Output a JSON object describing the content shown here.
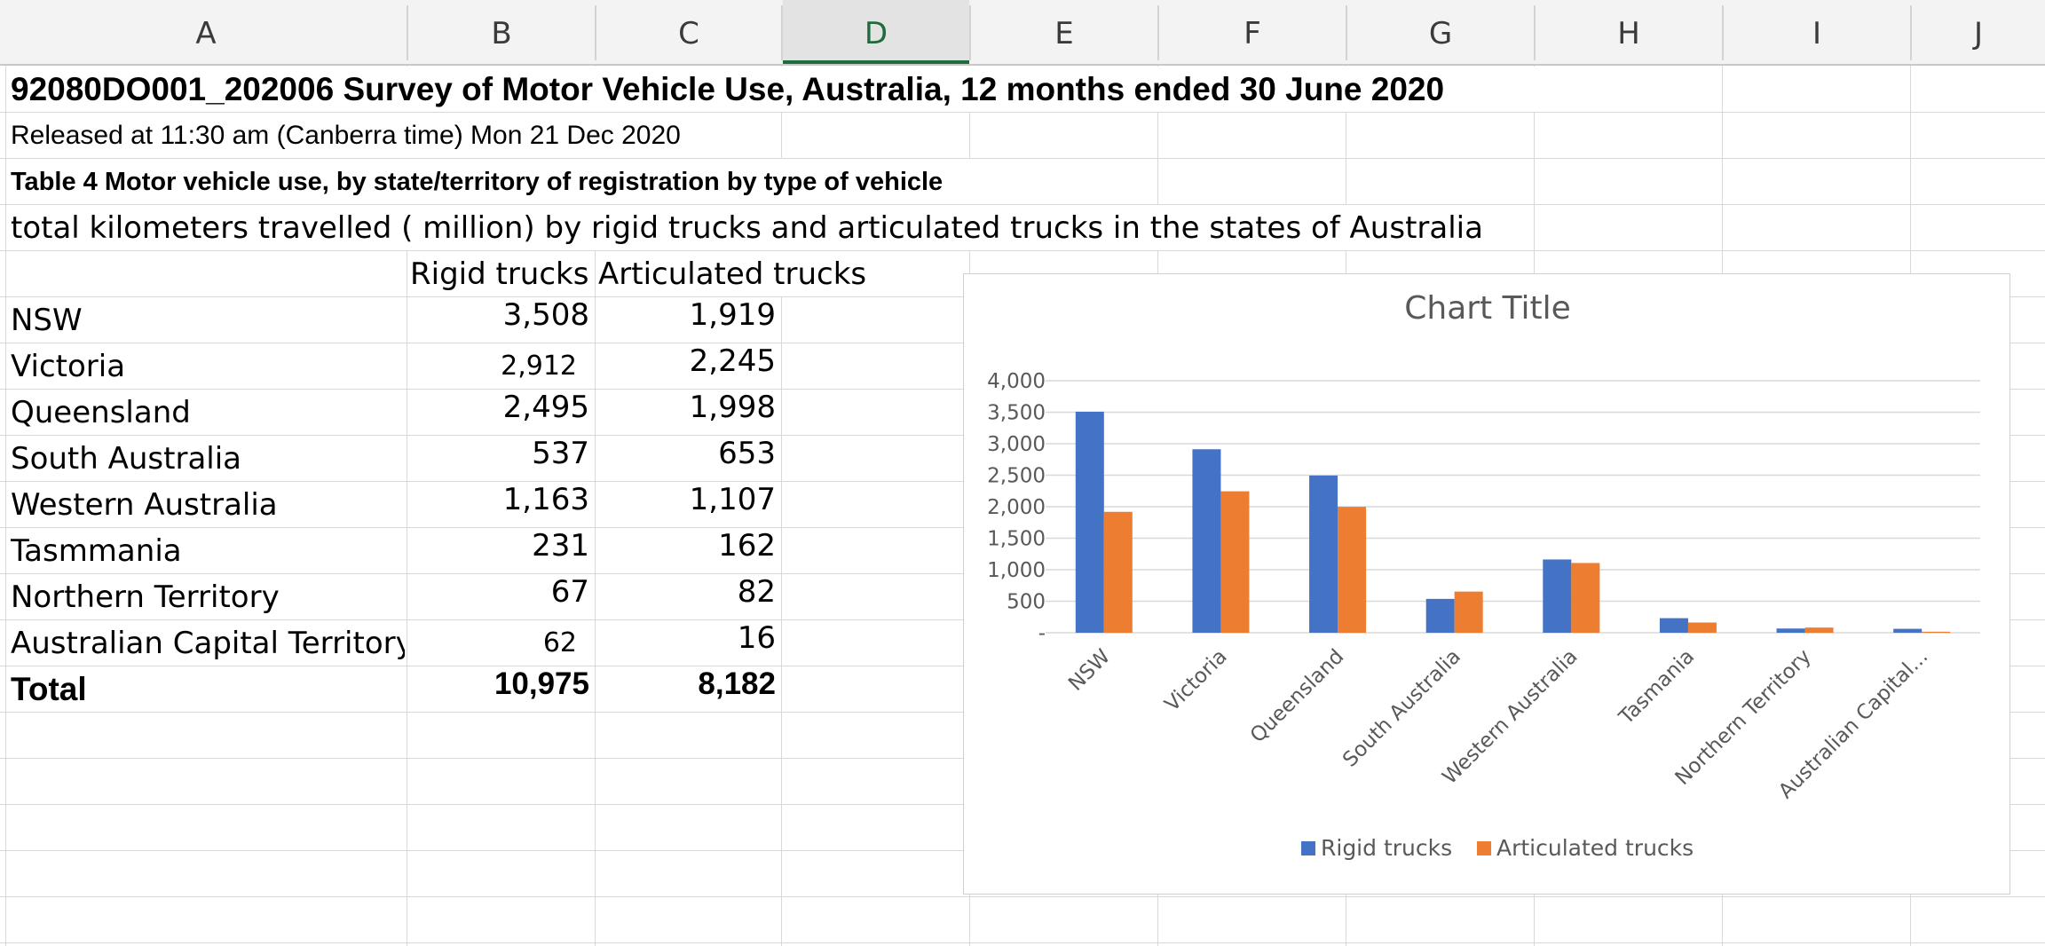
{
  "columns": [
    "A",
    "B",
    "C",
    "D",
    "E",
    "F",
    "G",
    "H",
    "I",
    "J"
  ],
  "active_column": "D",
  "sheet": {
    "title": "92080DO001_202006 Survey of Motor Vehicle Use, Australia, 12 months ended 30 June 2020",
    "released": "Released at 11:30 am (Canberra time) Mon 21 Dec 2020",
    "table_title": "Table 4 Motor vehicle use, by state/territory of registration by type of vehicle",
    "description": "total kilometers travelled ( million) by rigid trucks and articulated trucks in the states of Australia",
    "header_b": "Rigid trucks",
    "header_c": "Articulated trucks",
    "rows": [
      {
        "state": "NSW",
        "rigid": "3,508",
        "artic": "1,919"
      },
      {
        "state": "Victoria",
        "rigid": "2,912",
        "artic": "2,245"
      },
      {
        "state": "Queensland",
        "rigid": "2,495",
        "artic": "1,998"
      },
      {
        "state": "South Australia",
        "rigid": "537",
        "artic": "653"
      },
      {
        "state": "Western Australia",
        "rigid": "1,163",
        "artic": "1,107"
      },
      {
        "state": "Tasmmania",
        "rigid": "231",
        "artic": "162"
      },
      {
        "state": "Northern Territory",
        "rigid": "67",
        "artic": "82"
      },
      {
        "state": "Australian Capital Territory",
        "rigid": "62",
        "artic": "16"
      }
    ],
    "total": {
      "label": "Total",
      "rigid": "10,975",
      "artic": "8,182"
    }
  },
  "colors": {
    "rigid": "#4472c4",
    "artic": "#ed7d31",
    "active_col": "#1f6b3b"
  },
  "chart_data": {
    "type": "bar",
    "title": "Chart Title",
    "categories": [
      "NSW",
      "Victoria",
      "Queensland",
      "South Australia",
      "Western Australia",
      "Tasmania",
      "Northern Territory",
      "Australian Capital..."
    ],
    "series": [
      {
        "name": "Rigid trucks",
        "values": [
          3508,
          2912,
          2495,
          537,
          1163,
          231,
          67,
          62
        ]
      },
      {
        "name": "Articulated trucks",
        "values": [
          1919,
          2245,
          1998,
          653,
          1107,
          162,
          82,
          16
        ]
      }
    ],
    "ylim": [
      0,
      4000
    ],
    "yticks": [
      0,
      500,
      1000,
      1500,
      2000,
      2500,
      3000,
      3500,
      4000
    ],
    "ytick_labels": [
      "-",
      "500",
      "1,000",
      "1,500",
      "2,000",
      "2,500",
      "3,000",
      "3,500",
      "4,000"
    ],
    "legend": "bottom",
    "grid": true
  }
}
